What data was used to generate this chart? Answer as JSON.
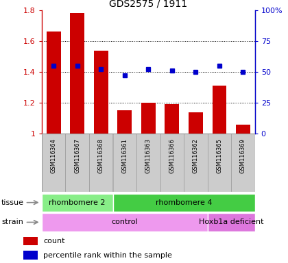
{
  "title": "GDS2575 / 1911",
  "samples": [
    "GSM116364",
    "GSM116367",
    "GSM116368",
    "GSM116361",
    "GSM116363",
    "GSM116366",
    "GSM116362",
    "GSM116365",
    "GSM116369"
  ],
  "counts": [
    1.66,
    1.78,
    1.54,
    1.15,
    1.2,
    1.19,
    1.14,
    1.31,
    1.06
  ],
  "percentiles": [
    55,
    55,
    52,
    47,
    52,
    51,
    50,
    55,
    50
  ],
  "bar_color": "#cc0000",
  "dot_color": "#0000cc",
  "ylim_left": [
    1.0,
    1.8
  ],
  "ylim_right": [
    0,
    100
  ],
  "yticks_left": [
    1.0,
    1.2,
    1.4,
    1.6,
    1.8
  ],
  "ytick_labels_left": [
    "1",
    "1.2",
    "1.4",
    "1.6",
    "1.8"
  ],
  "yticks_right": [
    0,
    25,
    50,
    75,
    100
  ],
  "ytick_labels_right": [
    "0",
    "25",
    "50",
    "75",
    "100%"
  ],
  "grid_yticks": [
    1.2,
    1.4,
    1.6
  ],
  "tissue_groups": [
    {
      "label": "rhombomere 2",
      "start": 0,
      "end": 3,
      "color": "#88ee88"
    },
    {
      "label": "rhombomere 4",
      "start": 3,
      "end": 9,
      "color": "#44cc44"
    }
  ],
  "strain_groups": [
    {
      "label": "control",
      "start": 0,
      "end": 7,
      "color": "#ee99ee"
    },
    {
      "label": "Hoxb1a deficient",
      "start": 7,
      "end": 9,
      "color": "#dd77dd"
    }
  ],
  "tissue_label": "tissue",
  "strain_label": "strain",
  "legend_count_label": "count",
  "legend_pct_label": "percentile rank within the sample",
  "background_color": "#ffffff",
  "sample_bg_color": "#cccccc",
  "sample_sep_color": "#999999"
}
